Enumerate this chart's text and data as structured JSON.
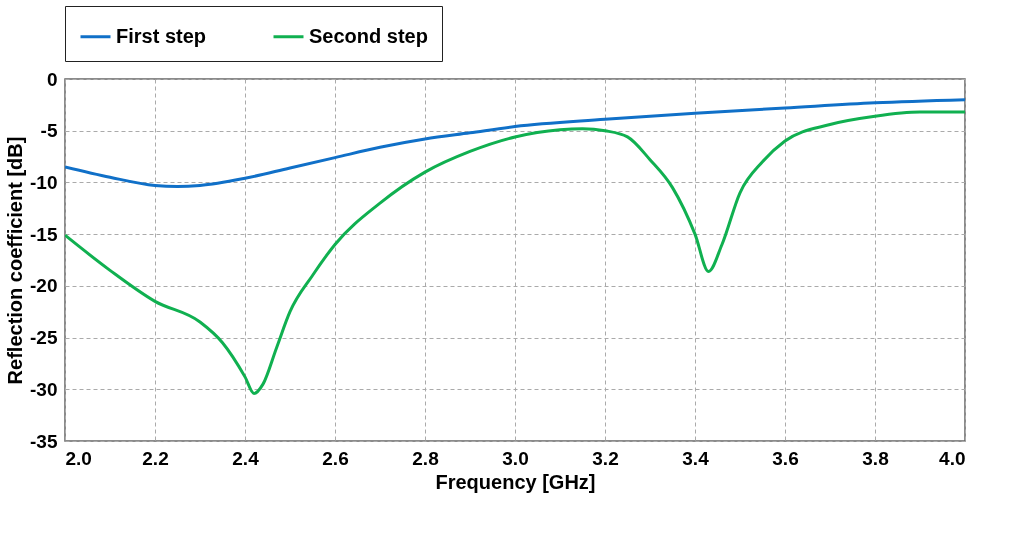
{
  "chart_data": {
    "type": "line",
    "xlabel": "Frequency [GHz]",
    "ylabel": "Reflection coefficient [dB]",
    "xlim": [
      2.0,
      4.0
    ],
    "xticks": [
      {
        "value": 2.0,
        "label": "2.0"
      },
      2.2,
      2.4,
      2.6,
      2.8,
      {
        "value": 3.0,
        "label": "3.0"
      },
      3.2,
      3.4,
      3.6,
      3.8,
      {
        "value": 4.0,
        "label": "4.0"
      }
    ],
    "ylim": [
      -35,
      0
    ],
    "yticks": [
      -35,
      -30,
      -25,
      -20,
      -15,
      -10,
      -5,
      0
    ],
    "grid": true,
    "legend": "top",
    "line_style": "solid",
    "marker": "none",
    "series": [
      {
        "name": "First step",
        "color": "#1070c8",
        "x": [
          2.0,
          2.1,
          2.2,
          2.25,
          2.3,
          2.4,
          2.5,
          2.6,
          2.7,
          2.8,
          2.9,
          3.0,
          3.2,
          3.4,
          3.6,
          3.8,
          4.0
        ],
        "values": [
          -8.5,
          -9.5,
          -10.3,
          -10.4,
          -10.3,
          -9.6,
          -8.6,
          -7.6,
          -6.6,
          -5.8,
          -5.2,
          -4.6,
          -3.9,
          -3.3,
          -2.8,
          -2.3,
          -2.0
        ]
      },
      {
        "name": "Second step",
        "color": "#10b050",
        "x": [
          2.0,
          2.1,
          2.2,
          2.3,
          2.35,
          2.4,
          2.42,
          2.44,
          2.47,
          2.5,
          2.55,
          2.6,
          2.7,
          2.8,
          2.9,
          3.0,
          3.1,
          3.15,
          3.2,
          3.25,
          3.3,
          3.35,
          3.4,
          3.43,
          3.46,
          3.5,
          3.55,
          3.6,
          3.7,
          3.8,
          3.9,
          4.0
        ],
        "values": [
          -15.1,
          -18.5,
          -21.5,
          -23.5,
          -25.5,
          -28.8,
          -30.4,
          -29.5,
          -26,
          -22.5,
          -19,
          -16,
          -12,
          -9,
          -7,
          -5.6,
          -4.9,
          -4.8,
          -5.0,
          -5.6,
          -7.8,
          -10.5,
          -15,
          -18.6,
          -16,
          -11,
          -8,
          -6,
          -4.4,
          -3.6,
          -3.2,
          -3.2
        ]
      }
    ]
  }
}
